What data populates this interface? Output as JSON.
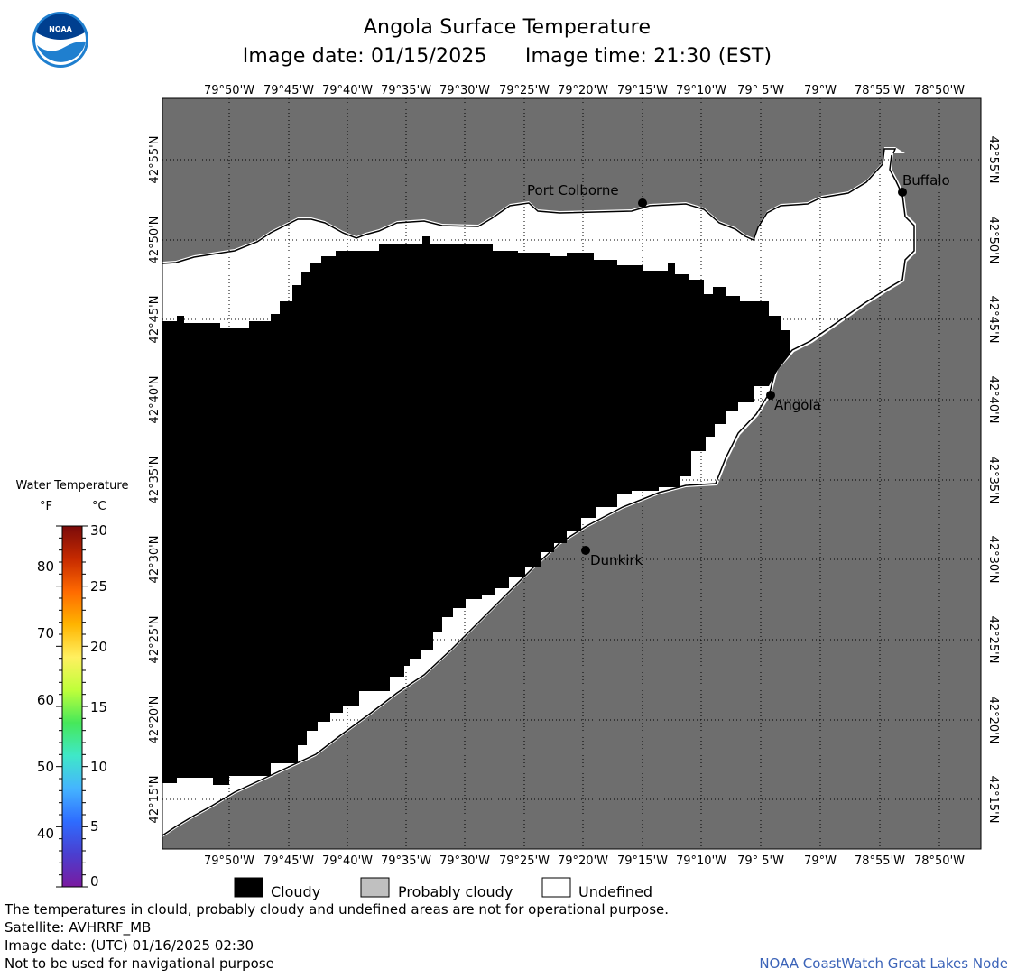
{
  "title": "Angola Surface Temperature",
  "image_date_label": "Image date: 01/15/2025",
  "image_time_label": "Image time: 21:30 (EST)",
  "logo": {
    "text": "NOAA",
    "icon": "noaa-logo-icon",
    "colors": {
      "outer": "#1f7fcf",
      "inner": "#003f8f"
    }
  },
  "map": {
    "colors": {
      "land": "#6e6e6e",
      "cloudy": "#000000",
      "undefined": "#ffffff",
      "grid": "#000000"
    },
    "lon_labels": [
      "79°50'W",
      "79°45'W",
      "79°40'W",
      "79°35'W",
      "79°30'W",
      "79°25'W",
      "79°20'W",
      "79°15'W",
      "79°10'W",
      "79° 5'W",
      "79°W",
      "78°55'W",
      "78°50'W"
    ],
    "lat_labels": [
      "42°55'N",
      "42°50'N",
      "42°45'N",
      "42°40'N",
      "42°35'N",
      "42°30'N",
      "42°25'N",
      "42°20'N",
      "42°15'N"
    ],
    "cities": [
      {
        "name": "Port Colborne"
      },
      {
        "name": "Buffalo"
      },
      {
        "name": "Angola"
      },
      {
        "name": "Dunkirk"
      }
    ]
  },
  "legend": {
    "title": "Water Temperature",
    "unit_f": "°F",
    "unit_c": "°C",
    "f_ticks": [
      "80",
      "70",
      "60",
      "50",
      "40"
    ],
    "c_ticks": [
      "30",
      "25",
      "20",
      "15",
      "10",
      "5",
      "0"
    ],
    "colorbar": [
      "#7a0a0a",
      "#c62a00",
      "#ff6a00",
      "#ffb400",
      "#fff060",
      "#bfff3a",
      "#46e85a",
      "#3fe8c8",
      "#45b4ff",
      "#2e6cff",
      "#4a3fd0",
      "#7a1aa0"
    ]
  },
  "key": {
    "cloudy": "Cloudy",
    "probably_cloudy": "Probably cloudy",
    "undefined": "Undefined",
    "colors": {
      "cloudy": "#000000",
      "probably_cloudy": "#c0c0c0",
      "undefined": "#ffffff"
    }
  },
  "notes": {
    "disclaimer": "The temperatures in clould, probably cloudy and undefined areas are not for operational purpose.",
    "satellite": "Satellite: AVHRRF_MB",
    "utc_date": "Image date: (UTC) 01/16/2025  02:30",
    "navigation": "Not to be used for navigational purpose",
    "credit": "NOAA CoastWatch Great Lakes Node"
  }
}
